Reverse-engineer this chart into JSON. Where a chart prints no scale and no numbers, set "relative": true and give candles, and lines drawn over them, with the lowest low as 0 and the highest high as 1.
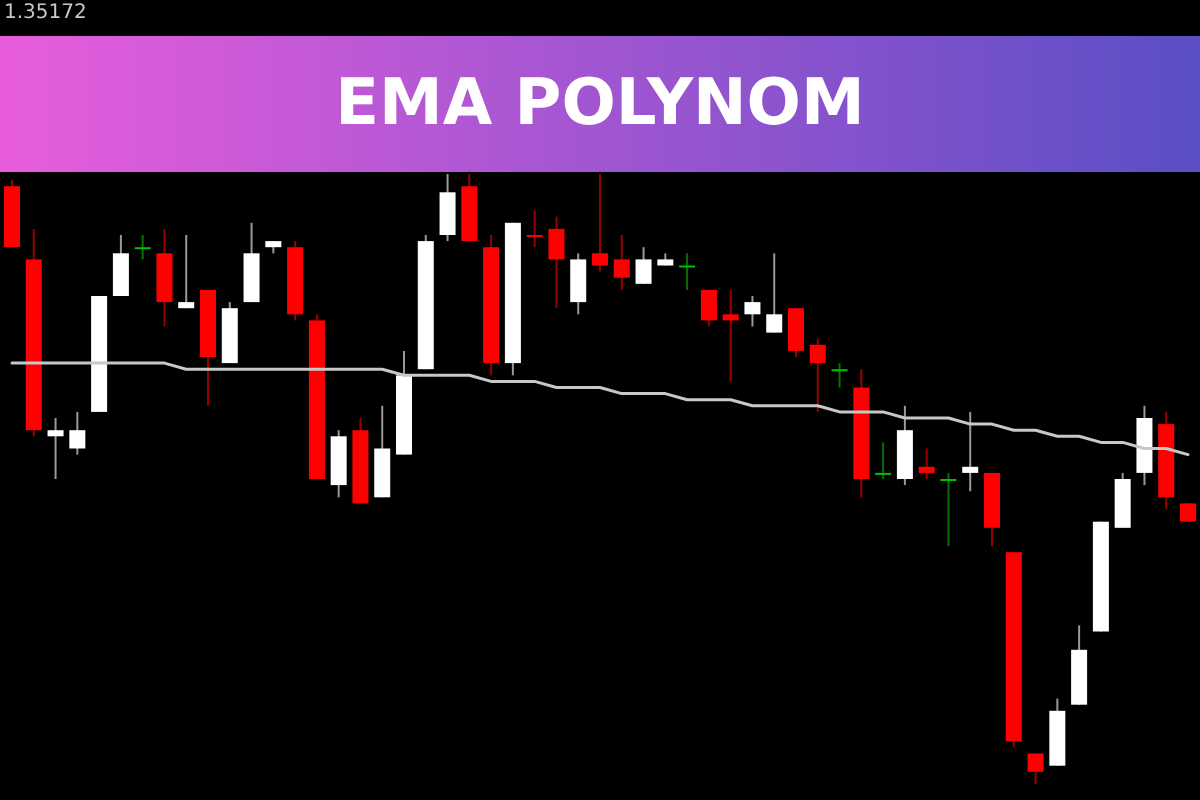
{
  "chart_data": {
    "type": "candlestick",
    "title": "EMA POLYNOM",
    "relative": true,
    "annotations": [
      "1.35172"
    ],
    "categories": [
      null,
      null,
      null,
      null,
      null,
      null,
      null,
      null,
      null,
      null,
      null,
      null,
      null,
      null,
      null,
      null,
      null,
      null,
      null,
      null,
      null,
      null,
      null,
      null,
      null,
      null,
      null,
      null,
      null,
      null,
      null,
      null,
      null,
      null,
      null,
      null,
      null,
      null,
      null,
      null,
      null,
      null,
      null,
      null,
      null,
      null,
      null,
      null,
      null,
      null,
      null,
      null,
      null,
      null,
      null
    ],
    "ohlc": [
      [
        0.98,
        0.99,
        0.88,
        0.88
      ],
      [
        0.86,
        0.91,
        0.57,
        0.58
      ],
      [
        0.57,
        0.6,
        0.5,
        0.58
      ],
      [
        0.55,
        0.61,
        0.54,
        0.58
      ],
      [
        0.61,
        0.8,
        0.61,
        0.8
      ],
      [
        0.8,
        0.9,
        0.8,
        0.87
      ],
      [
        0.88,
        0.9,
        0.86,
        0.88
      ],
      [
        0.87,
        0.91,
        0.75,
        0.79
      ],
      [
        0.78,
        0.9,
        0.78,
        0.79
      ],
      [
        0.81,
        0.81,
        0.62,
        0.7
      ],
      [
        0.69,
        0.79,
        0.69,
        0.78
      ],
      [
        0.79,
        0.92,
        0.79,
        0.87
      ],
      [
        0.88,
        0.89,
        0.87,
        0.89
      ],
      [
        0.88,
        0.89,
        0.76,
        0.77
      ],
      [
        0.76,
        0.77,
        0.5,
        0.5
      ],
      [
        0.49,
        0.58,
        0.47,
        0.57
      ],
      [
        0.58,
        0.6,
        0.46,
        0.46
      ],
      [
        0.47,
        0.62,
        0.47,
        0.55
      ],
      [
        0.54,
        0.71,
        0.54,
        0.67
      ],
      [
        0.68,
        0.9,
        0.68,
        0.89
      ],
      [
        0.9,
        1.0,
        0.89,
        0.97
      ],
      [
        0.98,
        1.0,
        0.89,
        0.89
      ],
      [
        0.88,
        0.9,
        0.67,
        0.69
      ],
      [
        0.69,
        0.92,
        0.67,
        0.92
      ],
      [
        0.9,
        0.94,
        0.88,
        0.9
      ],
      [
        0.91,
        0.93,
        0.78,
        0.86
      ],
      [
        0.79,
        0.87,
        0.77,
        0.86
      ],
      [
        0.87,
        1.0,
        0.84,
        0.85
      ],
      [
        0.86,
        0.9,
        0.81,
        0.83
      ],
      [
        0.82,
        0.88,
        0.82,
        0.86
      ],
      [
        0.85,
        0.87,
        0.85,
        0.86
      ],
      [
        0.85,
        0.87,
        0.81,
        0.85
      ],
      [
        0.81,
        0.81,
        0.75,
        0.76
      ],
      [
        0.77,
        0.81,
        0.66,
        0.76
      ],
      [
        0.77,
        0.8,
        0.75,
        0.79
      ],
      [
        0.74,
        0.87,
        0.74,
        0.77
      ],
      [
        0.78,
        0.78,
        0.7,
        0.71
      ],
      [
        0.72,
        0.73,
        0.61,
        0.69
      ],
      [
        0.68,
        0.69,
        0.65,
        0.68
      ],
      [
        0.65,
        0.68,
        0.47,
        0.5
      ],
      [
        0.51,
        0.56,
        0.5,
        0.51
      ],
      [
        0.5,
        0.62,
        0.49,
        0.58
      ],
      [
        0.52,
        0.55,
        0.5,
        0.51
      ],
      [
        0.5,
        0.51,
        0.39,
        0.5
      ],
      [
        0.51,
        0.61,
        0.48,
        0.52
      ],
      [
        0.51,
        0.51,
        0.39,
        0.42
      ],
      [
        0.38,
        0.38,
        0.06,
        0.07
      ],
      [
        0.05,
        0.05,
        0.0,
        0.02
      ],
      [
        0.03,
        0.14,
        0.03,
        0.12
      ],
      [
        0.13,
        0.26,
        0.13,
        0.22
      ],
      [
        0.25,
        0.43,
        0.25,
        0.43
      ],
      [
        0.42,
        0.51,
        0.42,
        0.5
      ],
      [
        0.51,
        0.62,
        0.49,
        0.6
      ],
      [
        0.59,
        0.61,
        0.45,
        0.47
      ],
      [
        0.46,
        0.46,
        0.43,
        0.43
      ]
    ],
    "colors": [
      "#ff0000",
      "#ff0000",
      "#ffffff",
      "#ffffff",
      "#ffffff",
      "#ffffff",
      "#00c000",
      "#ff0000",
      "#ffffff",
      "#ff0000",
      "#ffffff",
      "#ffffff",
      "#ffffff",
      "#ff0000",
      "#ff0000",
      "#ffffff",
      "#ff0000",
      "#ffffff",
      "#ffffff",
      "#ffffff",
      "#ffffff",
      "#ff0000",
      "#ff0000",
      "#ffffff",
      "#ff0000",
      "#ff0000",
      "#ffffff",
      "#ff0000",
      "#ff0000",
      "#ffffff",
      "#ffffff",
      "#00c000",
      "#ff0000",
      "#ff0000",
      "#ffffff",
      "#ffffff",
      "#ff0000",
      "#ff0000",
      "#00c000",
      "#ff0000",
      "#00c000",
      "#ffffff",
      "#ff0000",
      "#00c000",
      "#ffffff",
      "#ff0000",
      "#ff0000",
      "#ff0000",
      "#ffffff",
      "#ffffff",
      "#ffffff",
      "#ffffff",
      "#ffffff",
      "#ff0000",
      "#ff0000"
    ],
    "series": [
      {
        "type": "line",
        "color": "#c8c8c8",
        "values": [
          0.69,
          0.69,
          0.69,
          0.69,
          0.69,
          0.69,
          0.69,
          0.69,
          0.68,
          0.68,
          0.68,
          0.68,
          0.68,
          0.68,
          0.68,
          0.68,
          0.68,
          0.68,
          0.67,
          0.67,
          0.67,
          0.67,
          0.66,
          0.66,
          0.66,
          0.65,
          0.65,
          0.65,
          0.64,
          0.64,
          0.64,
          0.63,
          0.63,
          0.63,
          0.62,
          0.62,
          0.62,
          0.62,
          0.61,
          0.61,
          0.61,
          0.6,
          0.6,
          0.6,
          0.59,
          0.59,
          0.58,
          0.58,
          0.57,
          0.57,
          0.56,
          0.56,
          0.55,
          0.55,
          0.54
        ]
      }
    ]
  }
}
